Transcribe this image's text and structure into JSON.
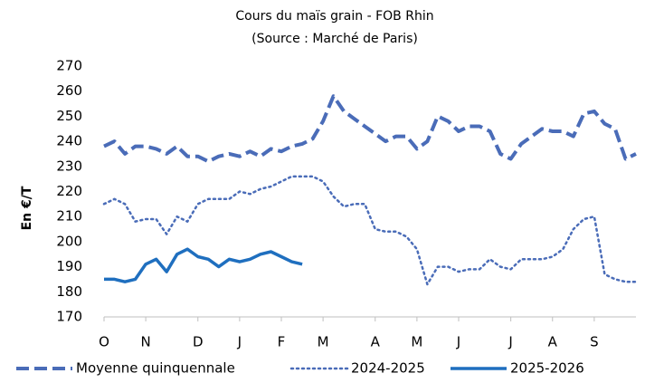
{
  "chart_data": {
    "type": "line",
    "title": "Cours du maïs grain - FOB Rhin",
    "subtitle": "(Source : Marché de Paris)",
    "y_label": "En €/T",
    "categories": [
      "O",
      null,
      null,
      null,
      "N",
      null,
      null,
      null,
      null,
      "D",
      null,
      null,
      null,
      "J",
      null,
      null,
      null,
      "F",
      null,
      null,
      null,
      "M",
      null,
      null,
      null,
      null,
      "A",
      null,
      null,
      null,
      "M",
      null,
      null,
      null,
      "J",
      null,
      null,
      null,
      null,
      "J",
      null,
      null,
      null,
      "A",
      null,
      null,
      null,
      "S",
      null,
      null,
      null,
      null
    ],
    "ylim": [
      170,
      270
    ],
    "yticks": [
      170,
      180,
      190,
      200,
      210,
      220,
      230,
      240,
      250,
      260,
      270
    ],
    "grid": false,
    "legend": "bottom",
    "series": [
      {
        "name": "Moyenne quinquennale",
        "color": "#4a6cb8",
        "dash": "dashed",
        "values": [
          238,
          240,
          235,
          238,
          238,
          237,
          235,
          238,
          234,
          234,
          232,
          234,
          235,
          234,
          236,
          234,
          237,
          236,
          238,
          239,
          241,
          248,
          258,
          252,
          249,
          246,
          243,
          240,
          242,
          242,
          237,
          240,
          250,
          248,
          244,
          246,
          246,
          244,
          235,
          233,
          239,
          242,
          245,
          244,
          244,
          242,
          251,
          252,
          247,
          245,
          233,
          235
        ]
      },
      {
        "name": "2024-2025",
        "color": "#4a6cb8",
        "dash": "dotted",
        "values": [
          215,
          217,
          215,
          208,
          209,
          209,
          203,
          210,
          208,
          215,
          217,
          217,
          217,
          220,
          219,
          221,
          222,
          224,
          226,
          226,
          226,
          224,
          218,
          214,
          215,
          215,
          205,
          204,
          204,
          202,
          197,
          183,
          190,
          190,
          188,
          189,
          189,
          193,
          190,
          189,
          193,
          193,
          193,
          194,
          197,
          205,
          209,
          210,
          187,
          185,
          184,
          184
        ]
      },
      {
        "name": "2025-2026",
        "color": "#1f6fbf",
        "dash": "solid",
        "values": [
          185,
          185,
          184,
          185,
          191,
          193,
          188,
          195,
          197,
          194,
          193,
          190,
          193,
          192,
          193,
          195,
          196,
          194,
          192,
          191,
          null,
          null,
          null,
          null,
          null,
          null,
          null,
          null,
          null,
          null,
          null,
          null,
          null,
          null,
          null,
          null,
          null,
          null,
          null,
          null,
          null,
          null,
          null,
          null,
          null,
          null,
          null,
          null,
          null,
          null,
          null,
          null
        ]
      }
    ]
  }
}
